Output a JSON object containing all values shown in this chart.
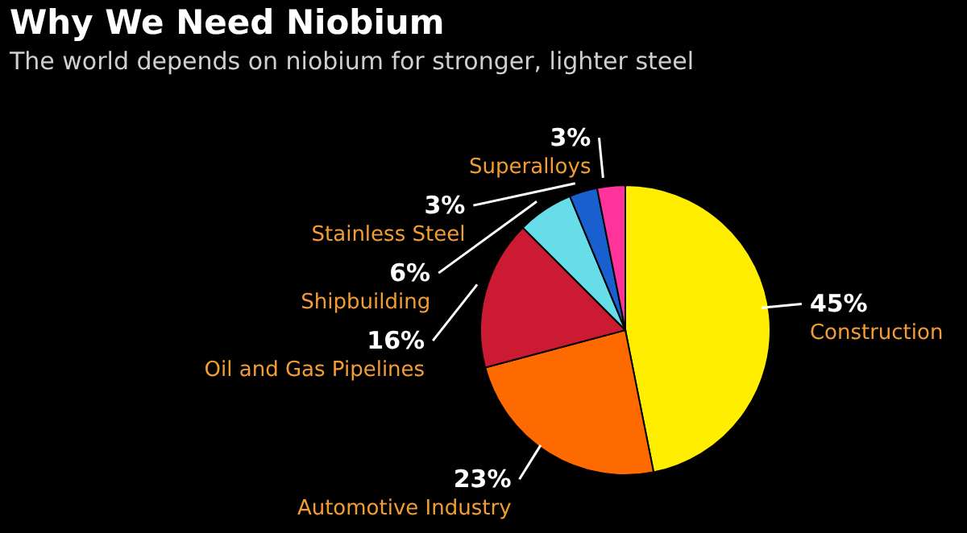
{
  "chart_data": {
    "type": "pie",
    "title": "Why We Need Niobium",
    "subtitle": "The world depends on niobium for stronger, lighter steel",
    "categories": [
      "Construction",
      "Automotive Industry",
      "Oil and Gas Pipelines",
      "Shipbuilding",
      "Stainless Steel",
      "Superalloys"
    ],
    "values": [
      45,
      23,
      16,
      6,
      3,
      3
    ],
    "value_labels": [
      "45%",
      "23%",
      "16%",
      "6%",
      "3%",
      "3%"
    ],
    "colors": [
      "#ffee00",
      "#ff6a00",
      "#cc1a33",
      "#66dde8",
      "#1a5fd0",
      "#ff3399"
    ],
    "legend": false
  }
}
